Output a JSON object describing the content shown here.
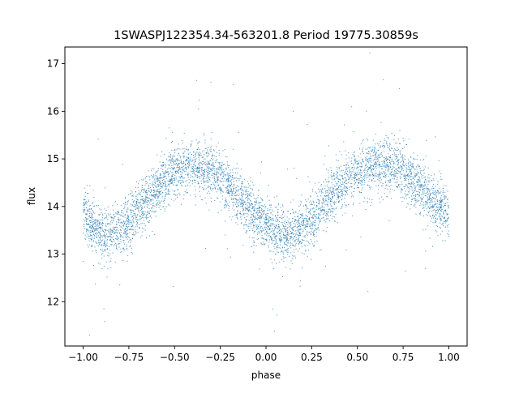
{
  "chart_data": {
    "type": "scatter",
    "title": "1SWASPJ122354.34-563201.8 Period 19775.30859s",
    "xlabel": "phase",
    "ylabel": "flux",
    "xlim": [
      -1.1,
      1.1
    ],
    "ylim": [
      11.07,
      17.35
    ],
    "x_ticks": [
      -1.0,
      -0.75,
      -0.5,
      -0.25,
      0.0,
      0.25,
      0.5,
      0.75,
      1.0
    ],
    "x_tick_labels": [
      "−1.00",
      "−0.75",
      "−0.50",
      "−0.25",
      "0.00",
      "0.25",
      "0.50",
      "0.75",
      "1.00"
    ],
    "y_ticks": [
      12,
      13,
      14,
      15,
      16,
      17
    ],
    "y_tick_labels": [
      "12",
      "13",
      "14",
      "15",
      "16",
      "17"
    ],
    "grid": false,
    "legend": "none",
    "point_color": "#1f77b4",
    "series": [
      {
        "phase": [
          -1.0,
          -0.95,
          -0.9,
          -0.85,
          -0.8,
          -0.75,
          -0.7,
          -0.65,
          -0.6,
          -0.55,
          -0.5,
          -0.45,
          -0.4,
          -0.35,
          -0.3,
          -0.25,
          -0.2,
          -0.15,
          -0.1,
          -0.05,
          0.0,
          0.05,
          0.1,
          0.15,
          0.2,
          0.25,
          0.3,
          0.35,
          0.4,
          0.45,
          0.5,
          0.55,
          0.6,
          0.65,
          0.7,
          0.75,
          0.8,
          0.85,
          0.9,
          0.95,
          1.0
        ],
        "flux": [
          13.85,
          13.6,
          13.45,
          13.4,
          13.5,
          13.7,
          13.95,
          14.15,
          14.35,
          14.55,
          14.7,
          14.8,
          14.85,
          14.85,
          14.75,
          14.6,
          14.4,
          14.2,
          14.0,
          13.8,
          13.6,
          13.45,
          13.35,
          13.4,
          13.55,
          13.75,
          14.0,
          14.2,
          14.4,
          14.55,
          14.65,
          14.75,
          14.85,
          14.85,
          14.8,
          14.7,
          14.55,
          14.4,
          14.2,
          14.0,
          13.85
        ]
      }
    ]
  }
}
